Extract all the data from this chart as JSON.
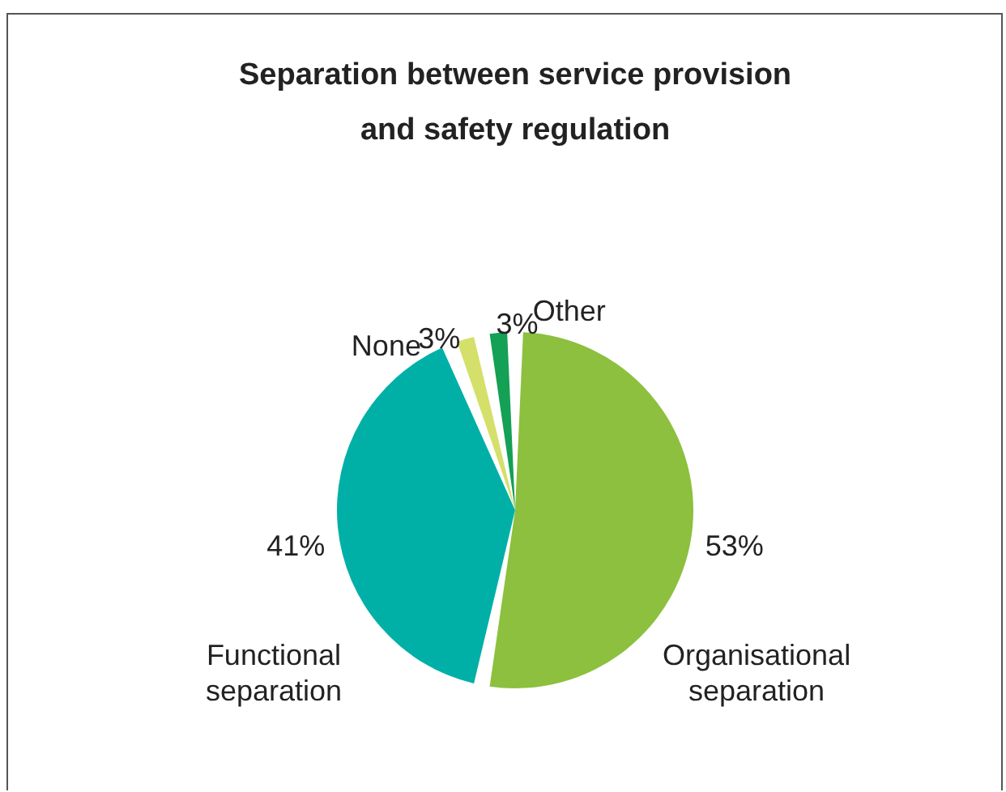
{
  "chart_data": {
    "type": "pie",
    "title": "Separation between service provision and safety regulation",
    "categories": [
      "Organisational separation",
      "Functional separation",
      "None",
      "Other"
    ],
    "values": [
      53,
      41,
      3,
      3
    ],
    "colors": [
      "#8cc03e",
      "#00b0a6",
      "#d4e06a",
      "#14a055"
    ],
    "value_labels": [
      "53%",
      "41%",
      "3%",
      "3%"
    ],
    "legend": false
  }
}
